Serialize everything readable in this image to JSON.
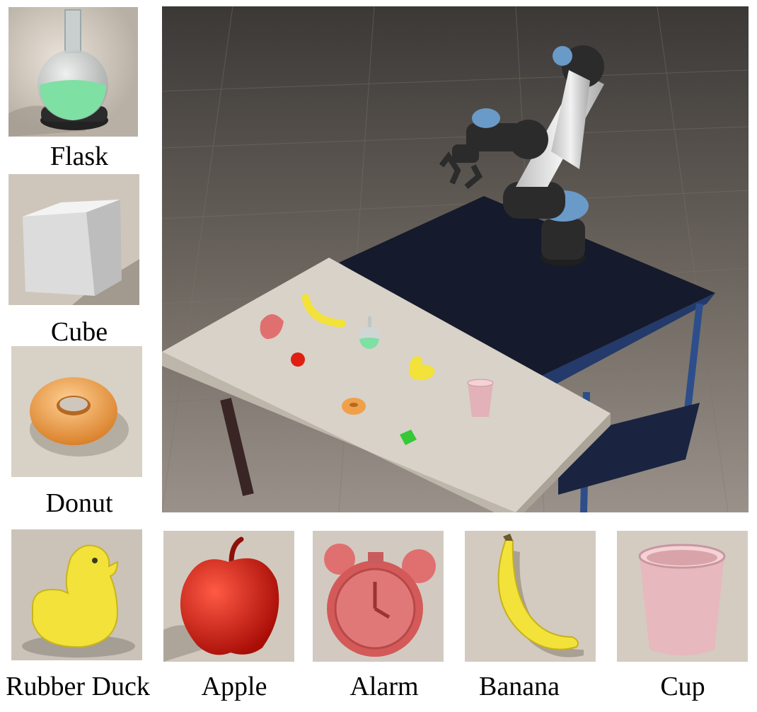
{
  "objects": [
    {
      "key": "flask",
      "label": "Flask"
    },
    {
      "key": "cube",
      "label": "Cube"
    },
    {
      "key": "donut",
      "label": "Donut"
    },
    {
      "key": "rubber_duck",
      "label": "Rubber Duck"
    },
    {
      "key": "apple",
      "label": "Apple"
    },
    {
      "key": "alarm",
      "label": "Alarm"
    },
    {
      "key": "banana",
      "label": "Banana"
    },
    {
      "key": "cup",
      "label": "Cup"
    }
  ],
  "colors": {
    "floor": "#cfc7bd",
    "flask_liquid": "#7ee0a3",
    "cube": "#e8e8e8",
    "donut": "#f0a04a",
    "duck": "#f2e23a",
    "apple": "#e01f12",
    "alarm": "#e07070",
    "banana": "#f3e23a",
    "cup": "#e8b8bf",
    "table_top": "#d8d2c8",
    "robot_table": "#151a2c",
    "robot_blue": "#6a9ac8"
  },
  "icons": [
    "flask-image",
    "cube-image",
    "donut-image",
    "rubber-duck-image",
    "apple-image",
    "alarm-image",
    "banana-image",
    "cup-image",
    "robot-scene-image"
  ]
}
